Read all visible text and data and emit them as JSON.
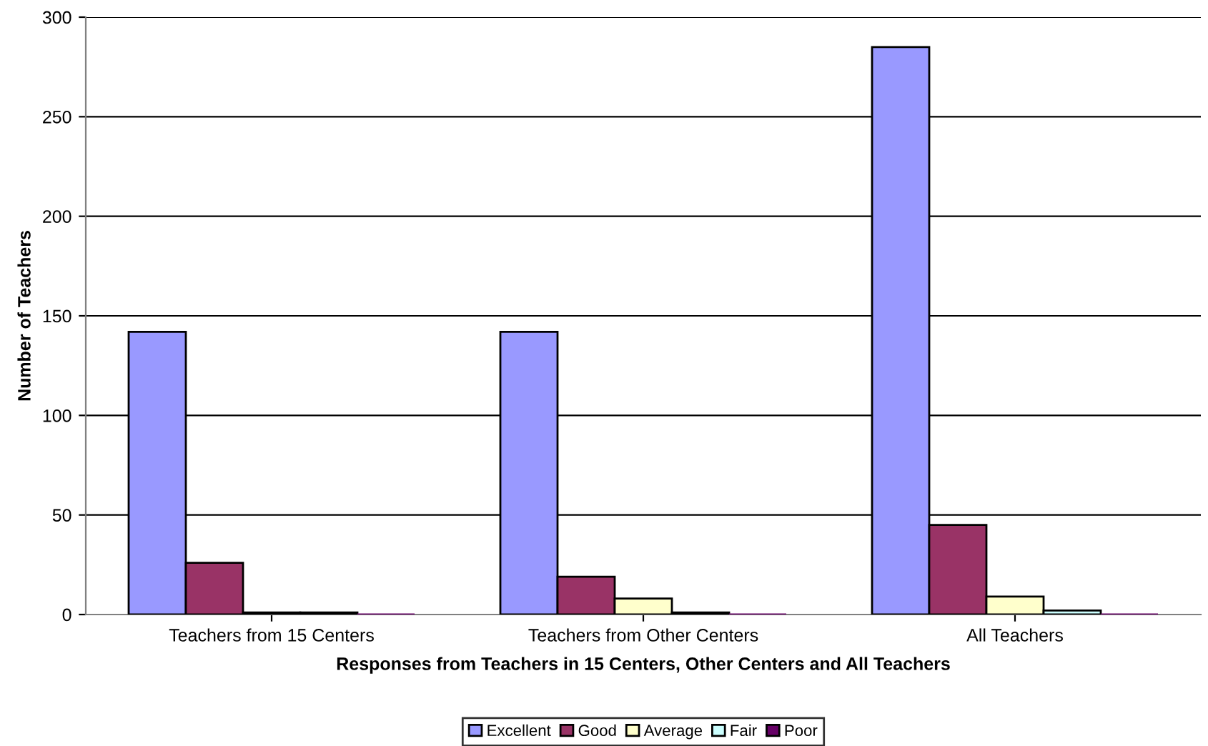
{
  "chart_data": {
    "type": "bar",
    "xlabel": "Responses from Teachers in 15 Centers, Other Centers and All Teachers",
    "ylabel": "Number of Teachers",
    "categories": [
      "Teachers from 15 Centers",
      "Teachers from Other Centers",
      "All Teachers"
    ],
    "series": [
      {
        "name": "Excellent",
        "color": "#9999ff",
        "values": [
          142,
          142,
          285
        ]
      },
      {
        "name": "Good",
        "color": "#993366",
        "values": [
          26,
          19,
          45
        ]
      },
      {
        "name": "Average",
        "color": "#ffffcc",
        "values": [
          1,
          8,
          9
        ]
      },
      {
        "name": "Fair",
        "color": "#ccffff",
        "values": [
          1,
          1,
          2
        ]
      },
      {
        "name": "Poor",
        "color": "#660066",
        "values": [
          0,
          0,
          0
        ]
      }
    ],
    "ylim": [
      0,
      300
    ],
    "yticks": [
      0,
      50,
      100,
      150,
      200,
      250,
      300
    ],
    "grid": "y",
    "legend": "bottom"
  }
}
